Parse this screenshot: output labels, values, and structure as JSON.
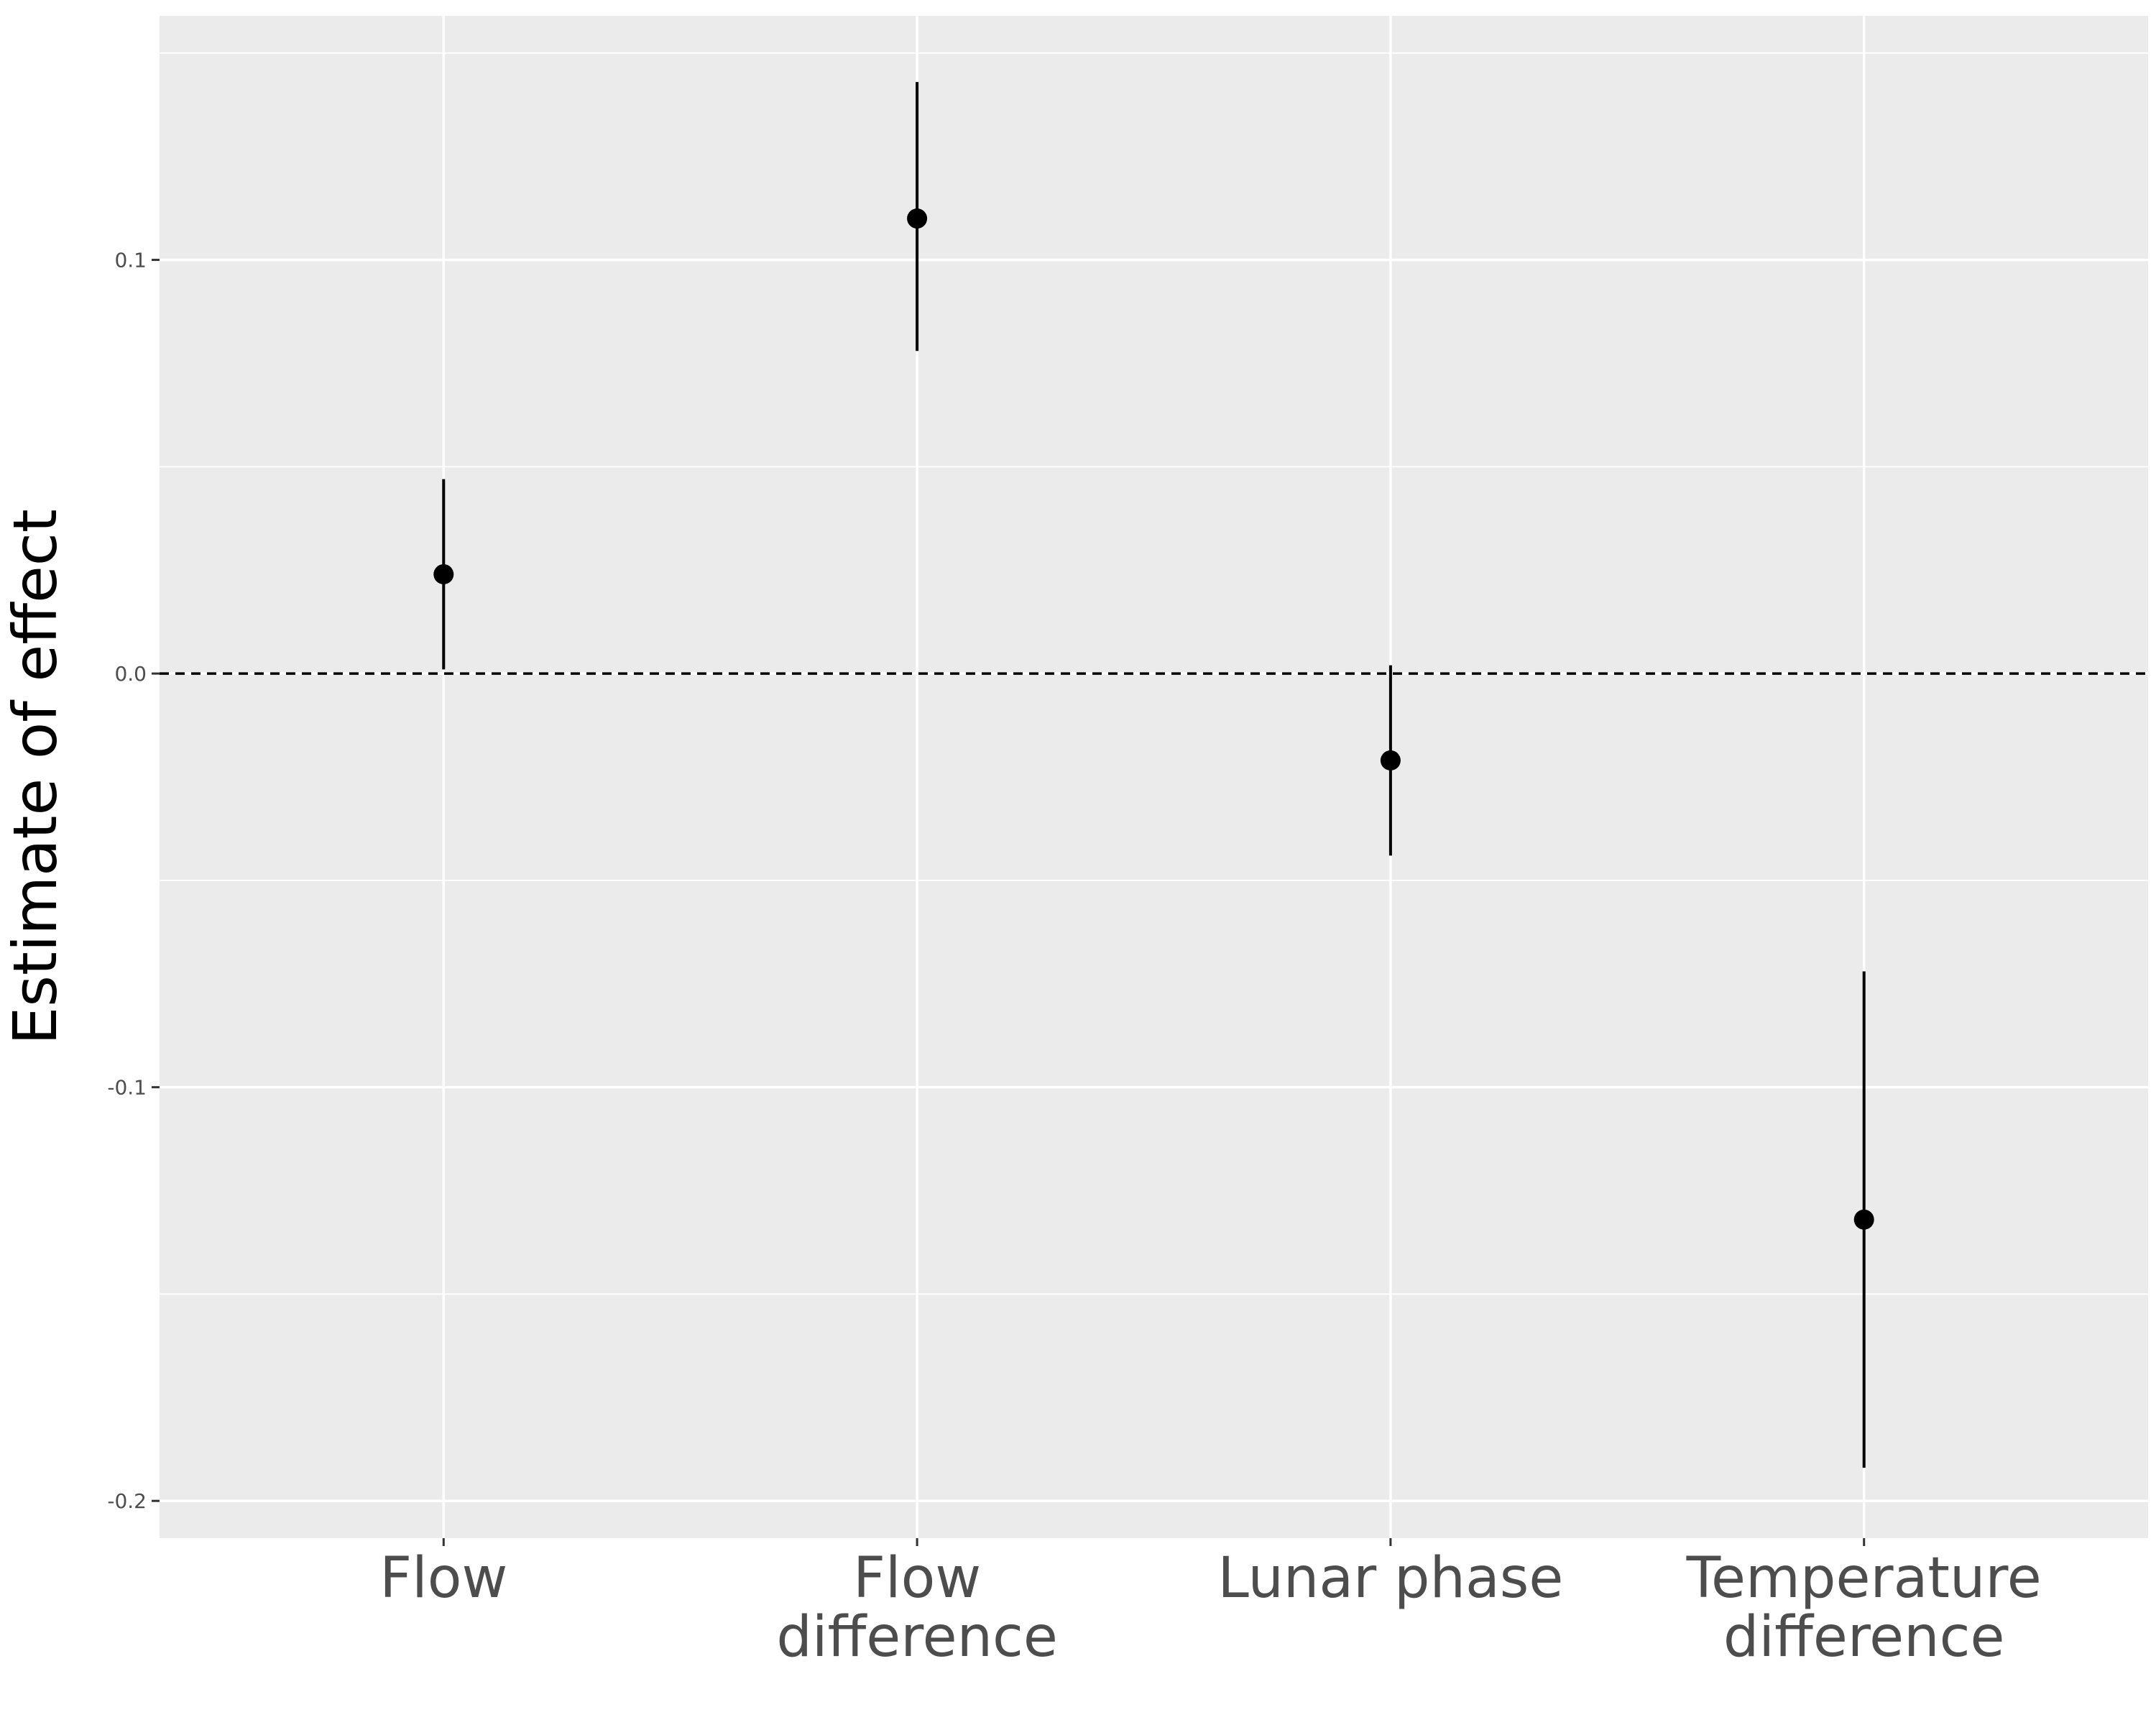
{
  "chart_data": {
    "type": "scatter",
    "title": "",
    "xlabel": "",
    "ylabel": "Estimate of effect",
    "categories": [
      [
        "Flow"
      ],
      [
        "Flow",
        "difference"
      ],
      [
        "Lunar phase"
      ],
      [
        "Temperature",
        "difference"
      ]
    ],
    "estimates": [
      0.024,
      0.11,
      -0.021,
      -0.132
    ],
    "lower": [
      0.001,
      0.078,
      -0.044,
      -0.192
    ],
    "upper": [
      0.047,
      0.143,
      0.002,
      -0.072
    ],
    "reference_line": 0,
    "ylim": [
      -0.209,
      0.159
    ],
    "yticks": [
      -0.2,
      -0.1,
      0.0,
      0.1
    ],
    "ytick_labels": [
      "-0.2",
      "-0.1",
      "0.0",
      "0.1"
    ],
    "grid": true,
    "colors": {
      "panel_background": "#ebebeb",
      "grid": "#ffffff",
      "points": "#000000",
      "tick_label": "#4d4d4d"
    }
  }
}
